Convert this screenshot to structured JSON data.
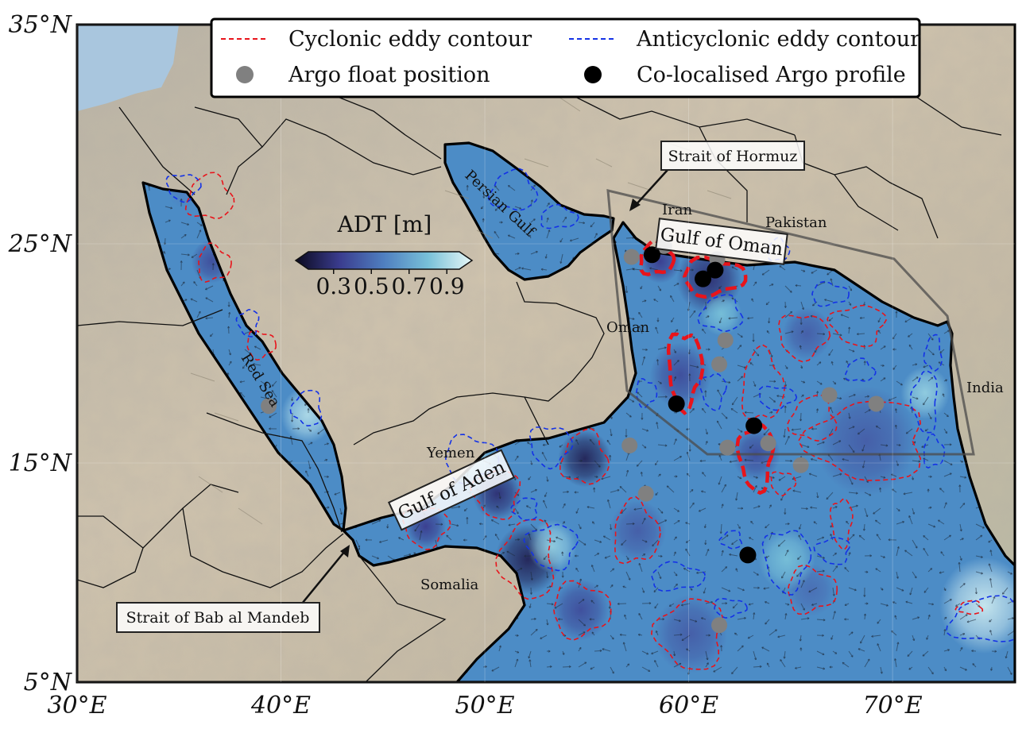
{
  "map": {
    "extent": {
      "lon": [
        30,
        76
      ],
      "lat": [
        5,
        35
      ]
    },
    "lon_ticks": [
      {
        "value": 30,
        "label": "30°E"
      },
      {
        "value": 40,
        "label": "40°E"
      },
      {
        "value": 50,
        "label": "50°E"
      },
      {
        "value": 60,
        "label": "60°E"
      },
      {
        "value": 70,
        "label": "70°E"
      }
    ],
    "lat_ticks": [
      {
        "value": 35,
        "label": "35°N"
      },
      {
        "value": 25,
        "label": "25°N"
      },
      {
        "value": 15,
        "label": "15°N"
      },
      {
        "value": 5,
        "label": "5°N"
      }
    ]
  },
  "legend": {
    "cyclonic": "Cyclonic eddy contour",
    "anticyclonic": "Anticyclonic eddy contour",
    "argo": "Argo float position",
    "colocalised": "Co-localised Argo profile"
  },
  "colorbar": {
    "title": "ADT [m]",
    "ticks": [
      "0.3",
      "0.5",
      "0.7",
      "0.9"
    ],
    "colors": [
      "#0b0a1f",
      "#3a3c8e",
      "#4f7fc0",
      "#78c0d8",
      "#e6f7f7"
    ]
  },
  "labels": {
    "iran": "Iran",
    "pakistan": "Pakistan",
    "oman": "Oman",
    "india": "India",
    "yemen": "Yemen",
    "somalia": "Somalia",
    "persian_gulf": "Persian Gulf",
    "red_sea": "Red Sea",
    "gulf_of_oman": "Gulf of Oman",
    "gulf_of_aden": "Gulf of Aden",
    "strait_hormuz": "Strait of Hormuz",
    "strait_bab": "Strait of Bab al Mandeb"
  },
  "colors": {
    "cyclonic": "#e8141b",
    "anticyclonic": "#1432e6",
    "argo": "#808080",
    "colocalised": "#000000"
  },
  "argo_points": [
    {
      "lon": 57.2,
      "lat": 24.4
    },
    {
      "lon": 58.8,
      "lat": 24.9
    },
    {
      "lon": 61.4,
      "lat": 24.3
    },
    {
      "lon": 61.8,
      "lat": 20.6
    },
    {
      "lon": 61.5,
      "lat": 19.5
    },
    {
      "lon": 57.1,
      "lat": 15.8
    },
    {
      "lon": 57.9,
      "lat": 13.6
    },
    {
      "lon": 61.9,
      "lat": 15.7
    },
    {
      "lon": 63.9,
      "lat": 15.9
    },
    {
      "lon": 65.5,
      "lat": 14.9
    },
    {
      "lon": 66.9,
      "lat": 18.1
    },
    {
      "lon": 69.2,
      "lat": 17.7
    },
    {
      "lon": 39.4,
      "lat": 17.6
    },
    {
      "lon": 61.5,
      "lat": 7.6
    }
  ],
  "colocalised_points": [
    {
      "lon": 58.2,
      "lat": 24.5
    },
    {
      "lon": 60.7,
      "lat": 23.4
    },
    {
      "lon": 61.3,
      "lat": 23.8
    },
    {
      "lon": 59.4,
      "lat": 17.7
    },
    {
      "lon": 63.2,
      "lat": 16.7
    },
    {
      "lon": 62.9,
      "lat": 10.8
    }
  ],
  "cyclonic_eddies": [
    {
      "lon": 36.5,
      "lat": 27.1,
      "rlon": 1.1,
      "rlat": 1.0
    },
    {
      "lon": 36.7,
      "lat": 24.1,
      "rlon": 0.8,
      "rlat": 0.8
    },
    {
      "lon": 39.0,
      "lat": 20.4,
      "rlon": 0.7,
      "rlat": 0.6
    },
    {
      "lon": 47.1,
      "lat": 12.1,
      "rlon": 1.1,
      "rlat": 0.9
    },
    {
      "lon": 50.6,
      "lat": 13.6,
      "rlon": 1.1,
      "rlat": 1.1
    },
    {
      "lon": 52.1,
      "lat": 10.6,
      "rlon": 1.3,
      "rlat": 1.8
    },
    {
      "lon": 54.9,
      "lat": 15.2,
      "rlon": 1.1,
      "rlat": 1.2
    },
    {
      "lon": 57.4,
      "lat": 11.8,
      "rlon": 1.1,
      "rlat": 1.4
    },
    {
      "lon": 54.7,
      "lat": 8.3,
      "rlon": 1.4,
      "rlat": 1.2
    },
    {
      "lon": 65.6,
      "lat": 20.8,
      "rlon": 1.2,
      "rlat": 1.0
    },
    {
      "lon": 68.3,
      "lat": 21.3,
      "rlon": 1.3,
      "rlat": 0.9
    },
    {
      "lon": 68.8,
      "lat": 16.0,
      "rlon": 2.8,
      "rlat": 1.8
    },
    {
      "lon": 66.1,
      "lat": 17.0,
      "rlon": 1.1,
      "rlat": 1.0
    },
    {
      "lon": 63.6,
      "lat": 18.5,
      "rlon": 1.0,
      "rlat": 1.6
    },
    {
      "lon": 66.0,
      "lat": 9.2,
      "rlon": 1.2,
      "rlat": 1.0
    },
    {
      "lon": 64.6,
      "lat": 14.1,
      "rlon": 0.6,
      "rlat": 0.5
    },
    {
      "lon": 67.5,
      "lat": 12.3,
      "rlon": 0.5,
      "rlat": 1.1
    },
    {
      "lon": 60.1,
      "lat": 7.2,
      "rlon": 1.6,
      "rlat": 1.6
    },
    {
      "lon": 73.8,
      "lat": 8.4,
      "rlon": 0.6,
      "rlat": 0.3
    }
  ],
  "cyclonic_thick": [
    {
      "lon": 58.4,
      "lat": 24.3,
      "rlon": 0.8,
      "rlat": 0.7
    },
    {
      "lon": 61.2,
      "lat": 23.5,
      "rlon": 1.5,
      "rlat": 0.8
    },
    {
      "lon": 59.8,
      "lat": 19.3,
      "rlon": 0.8,
      "rlat": 1.7
    },
    {
      "lon": 63.3,
      "lat": 15.3,
      "rlon": 0.8,
      "rlat": 1.5
    }
  ],
  "anticyclonic_eddies": [
    {
      "lon": 35.2,
      "lat": 27.6,
      "rlon": 0.8,
      "rlat": 0.6
    },
    {
      "lon": 38.4,
      "lat": 21.4,
      "rlon": 0.5,
      "rlat": 0.6
    },
    {
      "lon": 41.3,
      "lat": 17.5,
      "rlon": 0.7,
      "rlat": 0.8
    },
    {
      "lon": 51.4,
      "lat": 27.4,
      "rlon": 1.1,
      "rlat": 0.9
    },
    {
      "lon": 53.6,
      "lat": 26.2,
      "rlon": 0.9,
      "rlat": 0.5
    },
    {
      "lon": 49.3,
      "lat": 15.2,
      "rlon": 1.3,
      "rlat": 1.0
    },
    {
      "lon": 53.2,
      "lat": 15.8,
      "rlon": 1.0,
      "rlat": 0.9
    },
    {
      "lon": 53.3,
      "lat": 11.2,
      "rlon": 1.2,
      "rlat": 1.0
    },
    {
      "lon": 52.0,
      "lat": 12.9,
      "rlon": 0.6,
      "rlat": 0.5
    },
    {
      "lon": 61.6,
      "lat": 21.8,
      "rlon": 1.0,
      "rlat": 0.8
    },
    {
      "lon": 64.4,
      "lat": 24.7,
      "rlon": 0.5,
      "rlat": 0.5
    },
    {
      "lon": 66.9,
      "lat": 22.7,
      "rlon": 0.9,
      "rlat": 0.5
    },
    {
      "lon": 64.3,
      "lat": 18.0,
      "rlon": 0.9,
      "rlat": 0.5
    },
    {
      "lon": 61.2,
      "lat": 18.3,
      "rlon": 0.6,
      "rlat": 0.8
    },
    {
      "lon": 71.6,
      "lat": 17.8,
      "rlon": 0.6,
      "rlat": 1.4
    },
    {
      "lon": 72.0,
      "lat": 20.0,
      "rlon": 0.4,
      "rlat": 0.8
    },
    {
      "lon": 68.4,
      "lat": 19.2,
      "rlon": 0.7,
      "rlat": 0.5
    },
    {
      "lon": 59.4,
      "lat": 9.8,
      "rlon": 1.3,
      "rlat": 0.6
    },
    {
      "lon": 62.0,
      "lat": 8.4,
      "rlon": 0.8,
      "rlat": 0.4
    },
    {
      "lon": 64.8,
      "lat": 10.6,
      "rlon": 1.1,
      "rlat": 1.4
    },
    {
      "lon": 67.1,
      "lat": 11.0,
      "rlon": 0.8,
      "rlat": 0.6
    },
    {
      "lon": 62.1,
      "lat": 11.5,
      "rlon": 0.5,
      "rlat": 0.4
    },
    {
      "lon": 74.8,
      "lat": 7.8,
      "rlon": 2.0,
      "rlat": 1.0
    },
    {
      "lon": 72.0,
      "lat": 15.5,
      "rlon": 0.5,
      "rlat": 0.7
    },
    {
      "lon": 57.9,
      "lat": 18.2,
      "rlon": 0.5,
      "rlat": 0.6
    }
  ],
  "adt_blobs": [
    {
      "lon": 50.6,
      "lat": 13.6,
      "r": 1.2,
      "level": 0.35
    },
    {
      "lon": 54.9,
      "lat": 15.2,
      "r": 1.3,
      "level": 0.3
    },
    {
      "lon": 52.1,
      "lat": 10.6,
      "r": 1.6,
      "level": 0.3
    },
    {
      "lon": 47.1,
      "lat": 12.1,
      "r": 1.0,
      "level": 0.4
    },
    {
      "lon": 61.0,
      "lat": 23.4,
      "r": 1.6,
      "level": 0.35
    },
    {
      "lon": 58.6,
      "lat": 24.2,
      "r": 1.0,
      "level": 0.4
    },
    {
      "lon": 59.6,
      "lat": 19.0,
      "r": 1.5,
      "level": 0.45
    },
    {
      "lon": 63.3,
      "lat": 15.4,
      "r": 1.2,
      "level": 0.45
    },
    {
      "lon": 57.5,
      "lat": 11.9,
      "r": 1.4,
      "level": 0.5
    },
    {
      "lon": 54.7,
      "lat": 8.3,
      "r": 1.4,
      "level": 0.45
    },
    {
      "lon": 60.1,
      "lat": 7.2,
      "r": 1.8,
      "level": 0.5
    },
    {
      "lon": 65.8,
      "lat": 20.9,
      "r": 1.2,
      "level": 0.5
    },
    {
      "lon": 68.7,
      "lat": 16.0,
      "r": 2.5,
      "level": 0.5
    },
    {
      "lon": 66.0,
      "lat": 9.2,
      "r": 1.2,
      "level": 0.55
    },
    {
      "lon": 49.3,
      "lat": 15.2,
      "r": 1.3,
      "level": 0.85
    },
    {
      "lon": 53.3,
      "lat": 11.2,
      "r": 1.2,
      "level": 0.85
    },
    {
      "lon": 41.3,
      "lat": 17.2,
      "r": 1.3,
      "level": 0.9
    },
    {
      "lon": 61.6,
      "lat": 21.8,
      "r": 1.0,
      "level": 0.8
    },
    {
      "lon": 64.8,
      "lat": 10.6,
      "r": 1.4,
      "level": 0.8
    },
    {
      "lon": 74.5,
      "lat": 8.5,
      "r": 2.2,
      "level": 0.95
    },
    {
      "lon": 71.6,
      "lat": 18.2,
      "r": 1.2,
      "level": 0.85
    },
    {
      "lon": 36.6,
      "lat": 24.2,
      "r": 1.0,
      "level": 0.45
    },
    {
      "lon": 35.3,
      "lat": 27.5,
      "r": 0.9,
      "level": 0.6
    }
  ]
}
